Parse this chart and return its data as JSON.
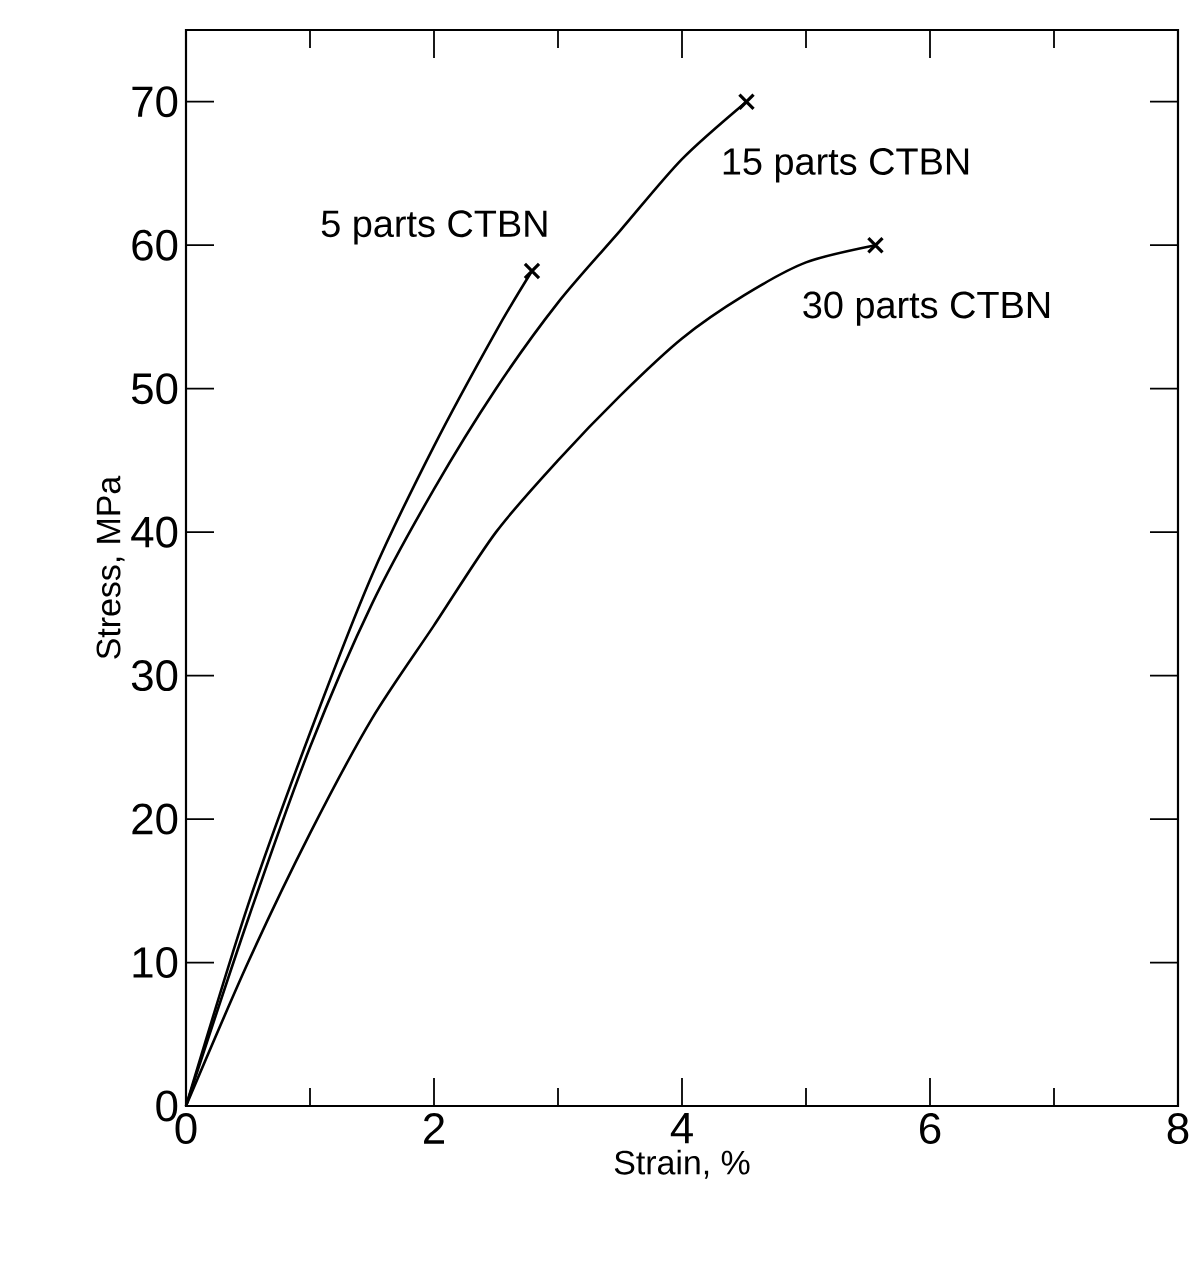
{
  "chart_data": {
    "type": "line",
    "xlabel": "Strain, %",
    "ylabel": "Stress, MPa",
    "xlim": [
      0,
      8
    ],
    "ylim": [
      0,
      75
    ],
    "xticks": [
      0,
      2,
      4,
      6,
      8
    ],
    "yticks": [
      0,
      10,
      20,
      30,
      40,
      50,
      60,
      70
    ],
    "grid": false,
    "legend": false,
    "marker": "none",
    "line_style": "solid",
    "series": [
      {
        "name": "5 parts CTBN",
        "color": "#000000",
        "x": [
          0,
          0.5,
          1,
          1.5,
          2,
          2.5,
          2.79
        ],
        "values": [
          0,
          14,
          26,
          37,
          46,
          54,
          58.2
        ]
      },
      {
        "name": "15 parts CTBN",
        "color": "#000000",
        "x": [
          0,
          0.5,
          1,
          1.5,
          2,
          2.5,
          3,
          3.5,
          4,
          4.52
        ],
        "values": [
          0,
          13,
          25,
          35,
          43,
          50,
          56,
          61,
          66,
          70
        ]
      },
      {
        "name": "30 parts CTBN",
        "color": "#000000",
        "x": [
          0,
          0.5,
          1,
          1.5,
          2,
          2.5,
          3,
          3.5,
          4,
          4.5,
          5,
          5.56
        ],
        "values": [
          0,
          10,
          19,
          27,
          33.5,
          40,
          45,
          49.5,
          53.5,
          56.5,
          58.8,
          60
        ]
      },
      {
        "type": "scatter",
        "marker": "cross",
        "color": "#000000",
        "x": [
          2.79,
          4.52,
          5.56
        ],
        "values": [
          58.2,
          70,
          60
        ]
      }
    ]
  }
}
